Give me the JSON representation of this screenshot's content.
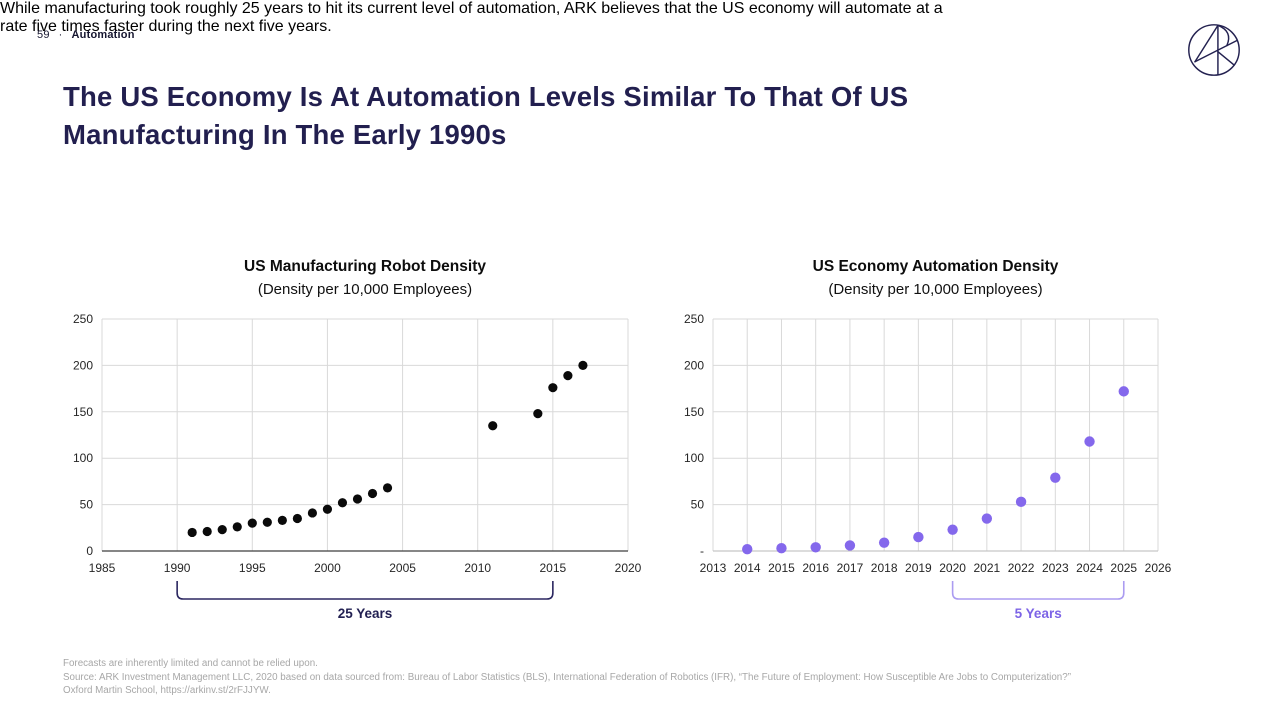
{
  "header": {
    "page_number": "59",
    "separator": "·",
    "section": "Automation"
  },
  "logo": {
    "name": "ark-invest-logo"
  },
  "title": {
    "lines": [
      "The US Economy Is At Automation Levels Similar To That Of US",
      "Manufacturing In The Early 1990s"
    ]
  },
  "subtitle": {
    "lines": [
      "While manufacturing took roughly 25 years to hit its current level of automation, ARK believes that the US economy will automate at a",
      "rate five times faster during the next five years."
    ]
  },
  "colors": {
    "navy": "#221f4f",
    "black_dot": "#0a0a0a",
    "purple_dot": "#8468ec",
    "grid": "#d9d9d9",
    "navy_bracket": "#2b2760",
    "purple_bracket": "#ab9cf1",
    "purple_label": "#7c63e6",
    "footer_gray": "#a7a7a7"
  },
  "chart_data": [
    {
      "type": "scatter",
      "title": "US Manufacturing Robot Density",
      "subtitle": "(Density per 10,000 Employees)",
      "xlim": [
        1985,
        2020
      ],
      "ylim": [
        0,
        250
      ],
      "x_ticks": [
        1985,
        1990,
        1995,
        2000,
        2005,
        2010,
        2015,
        2020
      ],
      "x_tick_labels": [
        "1985",
        "1990",
        "1995",
        "2000",
        "2005",
        "2010",
        "2015",
        "2020"
      ],
      "y_ticks": [
        0,
        50,
        100,
        150,
        200,
        250
      ],
      "y_tick_labels": [
        "0",
        "50",
        "100",
        "150",
        "200",
        "250"
      ],
      "grid": true,
      "points": [
        [
          1991,
          20
        ],
        [
          1992,
          21
        ],
        [
          1993,
          23
        ],
        [
          1994,
          26
        ],
        [
          1995,
          30
        ],
        [
          1996,
          31
        ],
        [
          1997,
          33
        ],
        [
          1998,
          35
        ],
        [
          1999,
          41
        ],
        [
          2000,
          45
        ],
        [
          2001,
          52
        ],
        [
          2002,
          56
        ],
        [
          2003,
          62
        ],
        [
          2004,
          68
        ],
        [
          2011,
          135
        ],
        [
          2014,
          148
        ],
        [
          2015,
          176
        ],
        [
          2016,
          189
        ],
        [
          2017,
          200
        ]
      ],
      "dot_color": "#0a0a0a",
      "dot_radius": 4.6,
      "axis_line_color": "#3f3f3f",
      "bracket": {
        "from": 1990,
        "to": 2015,
        "label": "25 Years",
        "line_color": "#2b2760",
        "label_color": "#222052"
      }
    },
    {
      "type": "scatter",
      "title": "US Economy Automation Density",
      "subtitle": "(Density per 10,000 Employees)",
      "xlim": [
        2013,
        2026
      ],
      "ylim": [
        0,
        250
      ],
      "x_ticks": [
        2013,
        2014,
        2015,
        2016,
        2017,
        2018,
        2019,
        2020,
        2021,
        2022,
        2023,
        2024,
        2025,
        2026
      ],
      "x_tick_labels": [
        "2013",
        "2014",
        "2015",
        "2016",
        "2017",
        "2018",
        "2019",
        "2020",
        "2021",
        "2022",
        "2023",
        "2024",
        "2025",
        "2026"
      ],
      "y_ticks": [
        0,
        50,
        100,
        150,
        200,
        250
      ],
      "y_tick_labels": [
        "-",
        "50",
        "100",
        "150",
        "200",
        "250"
      ],
      "grid": true,
      "points": [
        [
          2014,
          2
        ],
        [
          2015,
          3
        ],
        [
          2016,
          4
        ],
        [
          2017,
          6
        ],
        [
          2018,
          9
        ],
        [
          2019,
          15
        ],
        [
          2020,
          23
        ],
        [
          2021,
          35
        ],
        [
          2022,
          53
        ],
        [
          2023,
          79
        ],
        [
          2024,
          118
        ],
        [
          2025,
          172
        ]
      ],
      "dot_color": "#8468ec",
      "dot_radius": 5.2,
      "axis_line_color": "#c6c6c6",
      "bracket": {
        "from": 2020,
        "to": 2025,
        "label": "5 Years",
        "line_color": "#ab9cf1",
        "label_color": "#7c63e6"
      }
    }
  ],
  "footer": {
    "lines": [
      "Forecasts are inherently limited and cannot be relied upon.",
      "Source: ARK Investment Management LLC, 2020 based on data sourced from: Bureau of Labor Statistics (BLS), International Federation of Robotics (IFR), “The Future of Employment: How Susceptible Are Jobs to Computerization?”",
      "Oxford Martin School, https://arkinv.st/2rFJJYW."
    ]
  }
}
